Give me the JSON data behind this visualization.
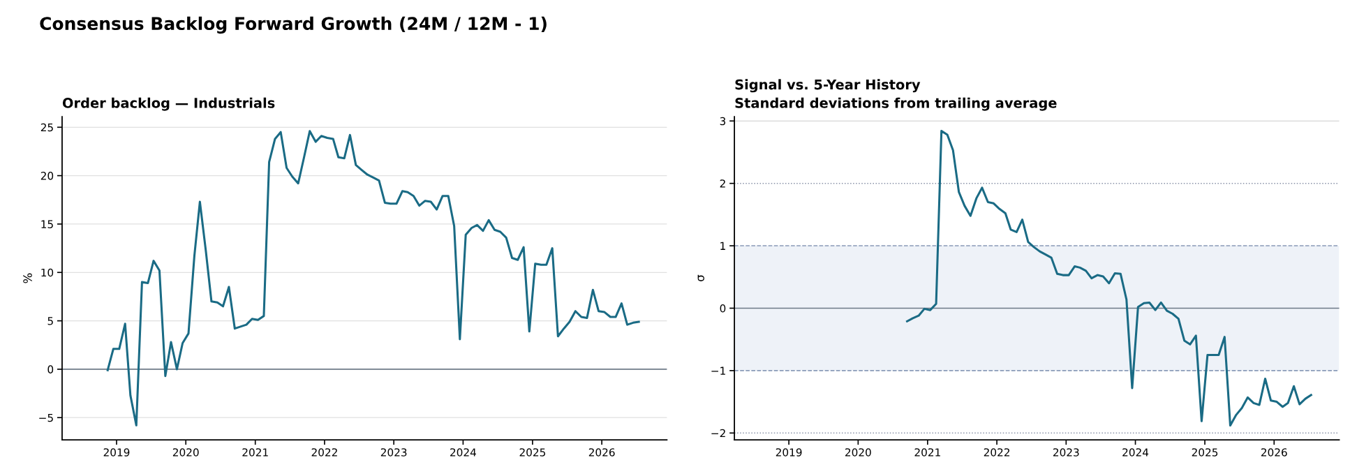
{
  "chart_data": [
    {
      "type": "line",
      "title": "Order backlog — Industrials",
      "ylabel": "%",
      "annotations": [
        "Consensus Backlog Forward Growth (24M / 12M - 1)"
      ],
      "x": [
        "2018-11-15",
        "2018-12-15",
        "2019-01-15",
        "2019-02-15",
        "2019-03-15",
        "2019-04-15",
        "2019-05-15",
        "2019-06-15",
        "2019-07-15",
        "2019-08-15",
        "2019-09-15",
        "2019-10-15",
        "2019-11-15",
        "2019-12-15",
        "2020-01-15",
        "2020-02-15",
        "2020-03-15",
        "2020-04-15",
        "2020-05-15",
        "2020-06-15",
        "2020-07-15",
        "2020-08-15",
        "2020-09-15",
        "2020-10-15",
        "2020-11-15",
        "2020-12-15",
        "2021-01-15",
        "2021-02-15",
        "2021-03-15",
        "2021-04-15",
        "2021-05-15",
        "2021-06-15",
        "2021-07-15",
        "2021-08-15",
        "2021-09-15",
        "2021-10-15",
        "2021-11-15",
        "2021-12-15",
        "2022-01-15",
        "2022-02-15",
        "2022-03-15",
        "2022-04-15",
        "2022-05-15",
        "2022-06-15",
        "2022-07-15",
        "2022-08-15",
        "2022-09-15",
        "2022-10-15",
        "2022-11-15",
        "2022-12-15",
        "2023-01-15",
        "2023-02-15",
        "2023-03-15",
        "2023-04-15",
        "2023-05-15",
        "2023-06-15",
        "2023-07-15",
        "2023-08-15",
        "2023-09-15",
        "2023-10-15",
        "2023-11-15",
        "2023-12-15",
        "2024-01-15",
        "2024-02-15",
        "2024-03-15",
        "2024-04-15",
        "2024-05-15",
        "2024-06-15",
        "2024-07-15",
        "2024-08-15",
        "2024-09-15",
        "2024-10-15",
        "2024-11-15",
        "2024-12-15",
        "2025-01-15",
        "2025-02-15",
        "2025-03-15",
        "2025-04-15",
        "2025-05-15",
        "2025-06-15",
        "2025-07-15",
        "2025-08-15",
        "2025-09-15",
        "2025-10-15",
        "2025-11-15",
        "2025-12-15",
        "2026-01-15",
        "2026-02-15",
        "2026-03-15",
        "2026-04-15",
        "2026-05-15",
        "2026-06-15",
        "2026-07-15"
      ],
      "series": [
        {
          "color": "#1a6b85",
          "values": [
            -0.1,
            2.1,
            2.1,
            4.7,
            -2.7,
            -5.8,
            9.0,
            8.9,
            11.2,
            10.2,
            -0.7,
            2.8,
            0.0,
            2.7,
            3.7,
            11.7,
            17.3,
            12.3,
            7.0,
            6.9,
            6.5,
            8.5,
            4.2,
            4.4,
            4.6,
            5.2,
            5.1,
            5.5,
            21.4,
            23.8,
            24.5,
            20.8,
            19.9,
            19.2,
            21.9,
            24.6,
            23.5,
            24.1,
            23.9,
            23.8,
            21.9,
            21.8,
            24.2,
            21.1,
            20.6,
            20.1,
            19.8,
            19.5,
            17.2,
            17.1,
            17.1,
            18.4,
            18.3,
            17.9,
            16.9,
            17.4,
            17.3,
            16.5,
            17.9,
            17.9,
            14.8,
            3.1,
            13.9,
            14.6,
            14.9,
            14.3,
            15.4,
            14.4,
            14.2,
            13.6,
            11.5,
            11.3,
            12.6,
            3.9,
            10.9,
            10.8,
            10.8,
            12.5,
            3.4,
            4.2,
            4.9,
            6.0,
            5.4,
            5.3,
            8.2,
            6.0,
            5.9,
            5.4,
            5.4,
            6.8,
            4.6,
            4.8,
            4.9
          ]
        }
      ],
      "xlim": [
        "2018-03-20",
        "2026-12-10"
      ],
      "xticks": [
        "2019",
        "2020",
        "2021",
        "2022",
        "2023",
        "2024",
        "2025",
        "2026"
      ],
      "ylim": [
        -7.3,
        26.1
      ],
      "yticks": [
        {
          "value": -5,
          "label": "−5"
        },
        0,
        5,
        10,
        15,
        20,
        25
      ],
      "ref_lines": [
        {
          "axis": "y",
          "value": 0,
          "color": "#6e7a87",
          "line_style": "solid"
        }
      ],
      "grid": "y",
      "legend": false,
      "marker": "none",
      "line_style": "solid"
    },
    {
      "type": "line",
      "title": "Signal vs. 5-Year History",
      "subtitle": "Standard deviations from trailing average",
      "ylabel": "σ",
      "x": [
        "2020-09-15",
        "2020-10-15",
        "2020-11-15",
        "2020-12-15",
        "2021-01-15",
        "2021-02-15",
        "2021-03-15",
        "2021-04-15",
        "2021-05-15",
        "2021-06-15",
        "2021-07-15",
        "2021-08-15",
        "2021-09-15",
        "2021-10-15",
        "2021-11-15",
        "2021-12-15",
        "2022-01-15",
        "2022-02-15",
        "2022-03-15",
        "2022-04-15",
        "2022-05-15",
        "2022-06-15",
        "2022-07-15",
        "2022-08-15",
        "2022-09-15",
        "2022-10-15",
        "2022-11-15",
        "2022-12-15",
        "2023-01-15",
        "2023-02-15",
        "2023-03-15",
        "2023-04-15",
        "2023-05-15",
        "2023-06-15",
        "2023-07-15",
        "2023-08-15",
        "2023-09-15",
        "2023-10-15",
        "2023-11-15",
        "2023-12-15",
        "2024-01-15",
        "2024-02-15",
        "2024-03-15",
        "2024-04-15",
        "2024-05-15",
        "2024-06-15",
        "2024-07-15",
        "2024-08-15",
        "2024-09-15",
        "2024-10-15",
        "2024-11-15",
        "2024-12-15",
        "2025-01-15",
        "2025-02-15",
        "2025-03-15",
        "2025-04-15",
        "2025-05-15",
        "2025-06-15",
        "2025-07-15",
        "2025-08-15",
        "2025-09-15",
        "2025-10-15",
        "2025-11-15",
        "2025-12-15",
        "2026-01-15",
        "2026-02-15",
        "2026-03-15",
        "2026-04-15",
        "2026-05-15",
        "2026-06-15",
        "2026-07-15"
      ],
      "series": [
        {
          "color": "#1a6b85",
          "values": [
            -0.21,
            -0.16,
            -0.12,
            -0.01,
            -0.03,
            0.07,
            2.84,
            2.78,
            2.53,
            1.86,
            1.64,
            1.48,
            1.76,
            1.93,
            1.7,
            1.68,
            1.59,
            1.52,
            1.26,
            1.22,
            1.42,
            1.06,
            0.98,
            0.91,
            0.86,
            0.81,
            0.55,
            0.53,
            0.53,
            0.67,
            0.65,
            0.6,
            0.48,
            0.53,
            0.51,
            0.4,
            0.56,
            0.55,
            0.14,
            -1.28,
            0.02,
            0.08,
            0.09,
            -0.03,
            0.09,
            -0.04,
            -0.09,
            -0.17,
            -0.52,
            -0.58,
            -0.44,
            -1.81,
            -0.75,
            -0.75,
            -0.75,
            -0.46,
            -1.88,
            -1.71,
            -1.6,
            -1.43,
            -1.52,
            -1.55,
            -1.13,
            -1.48,
            -1.5,
            -1.58,
            -1.52,
            -1.25,
            -1.54,
            -1.45,
            -1.39
          ]
        }
      ],
      "xlim": [
        "2018-03-20",
        "2026-12-10"
      ],
      "xticks": [
        "2019",
        "2020",
        "2021",
        "2022",
        "2023",
        "2024",
        "2025",
        "2026"
      ],
      "ylim": [
        -2.11,
        3.07
      ],
      "yticks": [
        {
          "value": -2,
          "label": "−2"
        },
        {
          "value": -1,
          "label": "−1"
        },
        0,
        1,
        2,
        3
      ],
      "bands": [
        {
          "axis": "y",
          "from": -1,
          "to": 1,
          "color": "#eef2f8"
        }
      ],
      "ref_lines": [
        {
          "axis": "y",
          "value": 0,
          "color": "#6e7a87",
          "line_style": "solid"
        },
        {
          "axis": "y",
          "value": 1,
          "color": "#8a9bb8",
          "line_style": "dashed"
        },
        {
          "axis": "y",
          "value": -1,
          "color": "#8a9bb8",
          "line_style": "dashed"
        },
        {
          "axis": "y",
          "value": 2,
          "color": "#8a93a8",
          "line_style": "dotted"
        },
        {
          "axis": "y",
          "value": -2,
          "color": "#8a93a8",
          "line_style": "dotted"
        },
        {
          "axis": "y",
          "value": 3,
          "color": "#e0e0e0",
          "line_style": "solid"
        }
      ],
      "legend": false,
      "marker": "none",
      "line_style": "solid"
    }
  ]
}
